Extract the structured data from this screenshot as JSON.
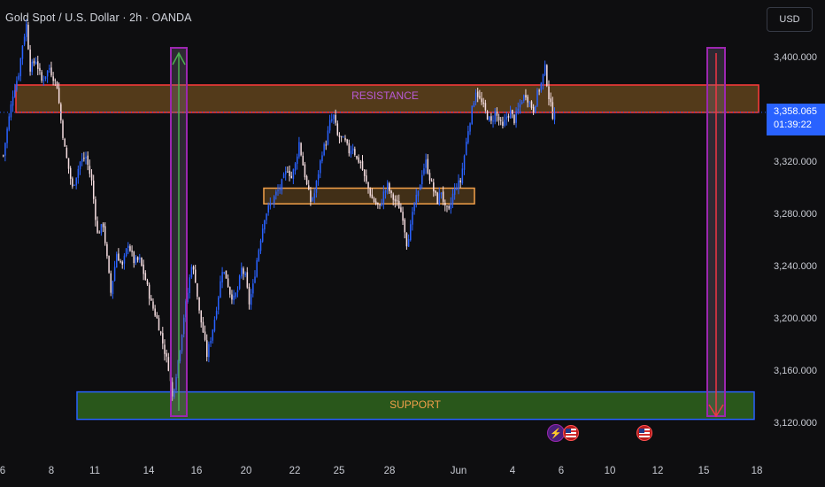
{
  "header": {
    "title": "Gold Spot / U.S. Dollar · 2h · OANDA",
    "currency_button": "USD"
  },
  "price_tag": {
    "price": "3,358.065",
    "countdown": "01:39:22"
  },
  "colors": {
    "background": "#0e0e10",
    "bull_candle": "#2962ff",
    "bear_candle": "#f5dde0",
    "resistance_fill": "#6b4a1e",
    "resistance_border": "#ff3b3b",
    "support_fill": "#2c5f1d",
    "support_border": "#2962ff",
    "consolidation_border": "#f2a04a",
    "marker_border": "#9c27b0",
    "up_arrow": "#4caf50",
    "down_arrow": "#f23645",
    "price_tag": "#2962ff"
  },
  "events": [
    {
      "icon": "lightning-icon",
      "type": "bolt"
    },
    {
      "icon": "us-flag-icon",
      "type": "flag"
    },
    {
      "icon": "us-flag-icon",
      "type": "flag"
    }
  ],
  "chart_data": {
    "type": "candlestick",
    "title": "Gold Spot / U.S. Dollar · 2h · OANDA",
    "currency": "USD",
    "ylim": [
      3100,
      3440
    ],
    "y_ticks": [
      {
        "value": 3400,
        "label": "3,400.000"
      },
      {
        "value": 3360,
        "label": "3,360.000"
      },
      {
        "value": 3320,
        "label": "3,320.000"
      },
      {
        "value": 3280,
        "label": "3,280.000"
      },
      {
        "value": 3240,
        "label": "3,240.000"
      },
      {
        "value": 3200,
        "label": "3,200.000"
      },
      {
        "value": 3160,
        "label": "3,160.000"
      },
      {
        "value": 3120,
        "label": "3,120.000"
      }
    ],
    "x_ticks": [
      "6",
      "8",
      "11",
      "14",
      "16",
      "20",
      "22",
      "25",
      "28",
      "Jun",
      "4",
      "6",
      "10",
      "12",
      "15",
      "18"
    ],
    "last_price": 3358.065,
    "price_path": [
      [
        0,
        3325
      ],
      [
        2,
        3345
      ],
      [
        5,
        3372
      ],
      [
        8,
        3388
      ],
      [
        10,
        3410
      ],
      [
        12,
        3425
      ],
      [
        14,
        3392
      ],
      [
        17,
        3398
      ],
      [
        20,
        3382
      ],
      [
        24,
        3392
      ],
      [
        28,
        3378
      ],
      [
        30,
        3352
      ],
      [
        32,
        3330
      ],
      [
        36,
        3300
      ],
      [
        40,
        3320
      ],
      [
        43,
        3324
      ],
      [
        46,
        3305
      ],
      [
        49,
        3265
      ],
      [
        52,
        3272
      ],
      [
        56,
        3220
      ],
      [
        59,
        3250
      ],
      [
        62,
        3240
      ],
      [
        65,
        3258
      ],
      [
        68,
        3244
      ],
      [
        71,
        3245
      ],
      [
        74,
        3230
      ],
      [
        77,
        3212
      ],
      [
        80,
        3200
      ],
      [
        82,
        3188
      ],
      [
        84,
        3175
      ],
      [
        86,
        3163
      ],
      [
        88,
        3140
      ],
      [
        90,
        3158
      ],
      [
        92,
        3178
      ],
      [
        94,
        3202
      ],
      [
        96,
        3220
      ],
      [
        98,
        3242
      ],
      [
        100,
        3230
      ],
      [
        102,
        3205
      ],
      [
        104,
        3190
      ],
      [
        106,
        3172
      ],
      [
        108,
        3185
      ],
      [
        110,
        3200
      ],
      [
        112,
        3218
      ],
      [
        114,
        3238
      ],
      [
        116,
        3232
      ],
      [
        118,
        3220
      ],
      [
        120,
        3215
      ],
      [
        122,
        3222
      ],
      [
        124,
        3238
      ],
      [
        126,
        3232
      ],
      [
        128,
        3212
      ],
      [
        130,
        3225
      ],
      [
        132,
        3245
      ],
      [
        134,
        3262
      ],
      [
        136,
        3278
      ],
      [
        138,
        3285
      ],
      [
        140,
        3290
      ],
      [
        142,
        3296
      ],
      [
        144,
        3300
      ],
      [
        146,
        3308
      ],
      [
        148,
        3315
      ],
      [
        150,
        3308
      ],
      [
        152,
        3318
      ],
      [
        154,
        3335
      ],
      [
        156,
        3318
      ],
      [
        158,
        3302
      ],
      [
        160,
        3290
      ],
      [
        162,
        3296
      ],
      [
        164,
        3312
      ],
      [
        166,
        3328
      ],
      [
        168,
        3335
      ],
      [
        170,
        3350
      ],
      [
        172,
        3355
      ],
      [
        174,
        3340
      ],
      [
        176,
        3338
      ],
      [
        178,
        3335
      ],
      [
        180,
        3328
      ],
      [
        182,
        3332
      ],
      [
        184,
        3322
      ],
      [
        186,
        3320
      ],
      [
        188,
        3308
      ],
      [
        190,
        3300
      ],
      [
        192,
        3292
      ],
      [
        194,
        3288
      ],
      [
        196,
        3285
      ],
      [
        198,
        3296
      ],
      [
        200,
        3302
      ],
      [
        202,
        3294
      ],
      [
        204,
        3290
      ],
      [
        206,
        3286
      ],
      [
        208,
        3278
      ],
      [
        210,
        3258
      ],
      [
        212,
        3270
      ],
      [
        214,
        3288
      ],
      [
        216,
        3296
      ],
      [
        218,
        3312
      ],
      [
        220,
        3320
      ],
      [
        222,
        3308
      ],
      [
        224,
        3298
      ],
      [
        226,
        3290
      ],
      [
        228,
        3298
      ],
      [
        230,
        3284
      ],
      [
        232,
        3282
      ],
      [
        234,
        3295
      ],
      [
        236,
        3302
      ],
      [
        238,
        3305
      ],
      [
        240,
        3325
      ],
      [
        242,
        3345
      ],
      [
        244,
        3360
      ],
      [
        246,
        3375
      ],
      [
        248,
        3368
      ],
      [
        250,
        3362
      ],
      [
        252,
        3355
      ],
      [
        254,
        3350
      ],
      [
        256,
        3358
      ],
      [
        258,
        3352
      ],
      [
        260,
        3346
      ],
      [
        262,
        3355
      ],
      [
        264,
        3358
      ],
      [
        266,
        3352
      ],
      [
        268,
        3360
      ],
      [
        270,
        3368
      ],
      [
        272,
        3372
      ],
      [
        274,
        3365
      ],
      [
        276,
        3360
      ],
      [
        278,
        3372
      ],
      [
        280,
        3380
      ],
      [
        282,
        3392
      ],
      [
        284,
        3370
      ],
      [
        286,
        3356
      ],
      [
        287,
        3358.065
      ]
    ],
    "zones": [
      {
        "name": "RESISTANCE",
        "y_top": 3379,
        "y_bottom": 3358
      },
      {
        "name": "SUPPORT",
        "y_top": 3144,
        "y_bottom": 3123
      },
      {
        "name": "",
        "y_top": 3300,
        "y_bottom": 3288
      }
    ]
  }
}
